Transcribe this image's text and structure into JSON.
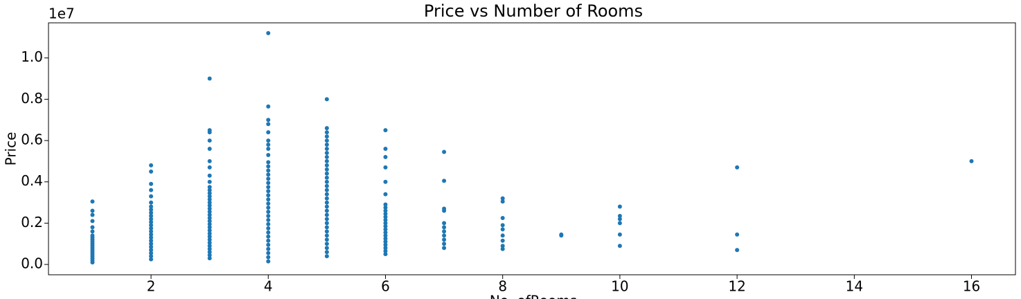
{
  "chart_data": {
    "type": "scatter",
    "title": "Price vs Number of Rooms",
    "x_label": "No. ofRooms",
    "y_label": "Price",
    "y_offset_label": "1e7",
    "color": "#1f77b4",
    "xlim": [
      0.25,
      16.75
    ],
    "xticks": [
      2,
      4,
      6,
      8,
      10,
      12,
      14,
      16
    ],
    "ylim": [
      -500000,
      11700000
    ],
    "yticks": [
      {
        "value": 0,
        "label": "0.0"
      },
      {
        "value": 2000000,
        "label": "0.2"
      },
      {
        "value": 4000000,
        "label": "0.4"
      },
      {
        "value": 6000000,
        "label": "0.6"
      },
      {
        "value": 8000000,
        "label": "0.8"
      },
      {
        "value": 10000000,
        "label": "1.0"
      }
    ],
    "x": [
      1,
      1,
      1,
      1,
      1,
      1,
      1,
      1,
      1,
      1,
      1,
      1,
      1,
      1,
      1,
      1,
      1,
      1,
      1,
      1,
      2,
      2,
      2,
      2,
      2,
      2,
      2,
      2,
      2,
      2,
      2,
      2,
      2,
      2,
      2,
      2,
      2,
      2,
      2,
      2,
      2,
      2,
      2,
      2,
      3,
      3,
      3,
      3,
      3,
      3,
      3,
      3,
      3,
      3,
      3,
      3,
      3,
      3,
      3,
      3,
      3,
      3,
      3,
      3,
      3,
      3,
      3,
      3,
      3,
      3,
      3,
      3,
      3,
      3,
      3,
      3,
      3,
      4,
      4,
      4,
      4,
      4,
      4,
      4,
      4,
      4,
      4,
      4,
      4,
      4,
      4,
      4,
      4,
      4,
      4,
      4,
      4,
      4,
      4,
      4,
      4,
      4,
      4,
      4,
      4,
      4,
      4,
      4,
      4,
      4,
      4,
      5,
      5,
      5,
      5,
      5,
      5,
      5,
      5,
      5,
      5,
      5,
      5,
      5,
      5,
      5,
      5,
      5,
      5,
      5,
      5,
      5,
      5,
      5,
      5,
      5,
      5,
      5,
      5,
      5,
      5,
      5,
      5,
      5,
      6,
      6,
      6,
      6,
      6,
      6,
      6,
      6,
      6,
      6,
      6,
      6,
      6,
      6,
      6,
      6,
      6,
      6,
      6,
      6,
      6,
      6,
      6,
      7,
      7,
      7,
      7,
      7,
      7,
      7,
      7,
      7,
      7,
      7,
      8,
      8,
      8,
      8,
      8,
      8,
      8,
      8,
      8,
      9,
      9,
      10,
      10,
      10,
      10,
      10,
      10,
      12,
      12,
      12,
      16
    ],
    "y": [
      100000,
      200000,
      300000,
      400000,
      500000,
      600000,
      700000,
      800000,
      900000,
      1000000,
      1100000,
      1200000,
      1300000,
      1400000,
      1600000,
      1800000,
      2100000,
      2400000,
      2600000,
      3050000,
      250000,
      400000,
      550000,
      700000,
      850000,
      1000000,
      1150000,
      1300000,
      1450000,
      1600000,
      1750000,
      1900000,
      2050000,
      2200000,
      2350000,
      2500000,
      2650000,
      2800000,
      3000000,
      3300000,
      3600000,
      3900000,
      4500000,
      4800000,
      300000,
      450000,
      600000,
      750000,
      900000,
      1050000,
      1200000,
      1350000,
      1500000,
      1650000,
      1800000,
      1950000,
      2100000,
      2250000,
      2400000,
      2550000,
      2700000,
      2850000,
      3000000,
      3150000,
      3300000,
      3450000,
      3600000,
      3750000,
      4000000,
      4300000,
      4700000,
      5000000,
      5600000,
      6000000,
      6400000,
      6500000,
      9000000,
      150000,
      350000,
      550000,
      750000,
      950000,
      1150000,
      1350000,
      1550000,
      1750000,
      1950000,
      2150000,
      2350000,
      2550000,
      2750000,
      2950000,
      3150000,
      3350000,
      3550000,
      3750000,
      3950000,
      4150000,
      4350000,
      4550000,
      4750000,
      4950000,
      5300000,
      5600000,
      5800000,
      6000000,
      6400000,
      6800000,
      7000000,
      7650000,
      11200000,
      400000,
      600000,
      800000,
      1000000,
      1200000,
      1400000,
      1600000,
      1800000,
      2000000,
      2200000,
      2400000,
      2600000,
      2800000,
      3000000,
      3200000,
      3400000,
      3600000,
      3800000,
      4000000,
      4200000,
      4400000,
      4600000,
      4800000,
      5000000,
      5200000,
      5400000,
      5600000,
      5800000,
      6000000,
      6200000,
      6400000,
      6600000,
      8000000,
      500000,
      650000,
      800000,
      950000,
      1100000,
      1250000,
      1400000,
      1550000,
      1700000,
      1850000,
      2000000,
      2150000,
      2300000,
      2450000,
      2600000,
      2750000,
      2900000,
      3400000,
      4000000,
      4700000,
      5200000,
      5600000,
      6500000,
      800000,
      1000000,
      1200000,
      1400000,
      1600000,
      1800000,
      2000000,
      2600000,
      2700000,
      4050000,
      5450000,
      750000,
      900000,
      1150000,
      1400000,
      1700000,
      1900000,
      2250000,
      3050000,
      3200000,
      1400000,
      1450000,
      900000,
      1450000,
      2000000,
      2200000,
      2350000,
      2800000,
      700000,
      1450000,
      4700000,
      5000000
    ]
  }
}
